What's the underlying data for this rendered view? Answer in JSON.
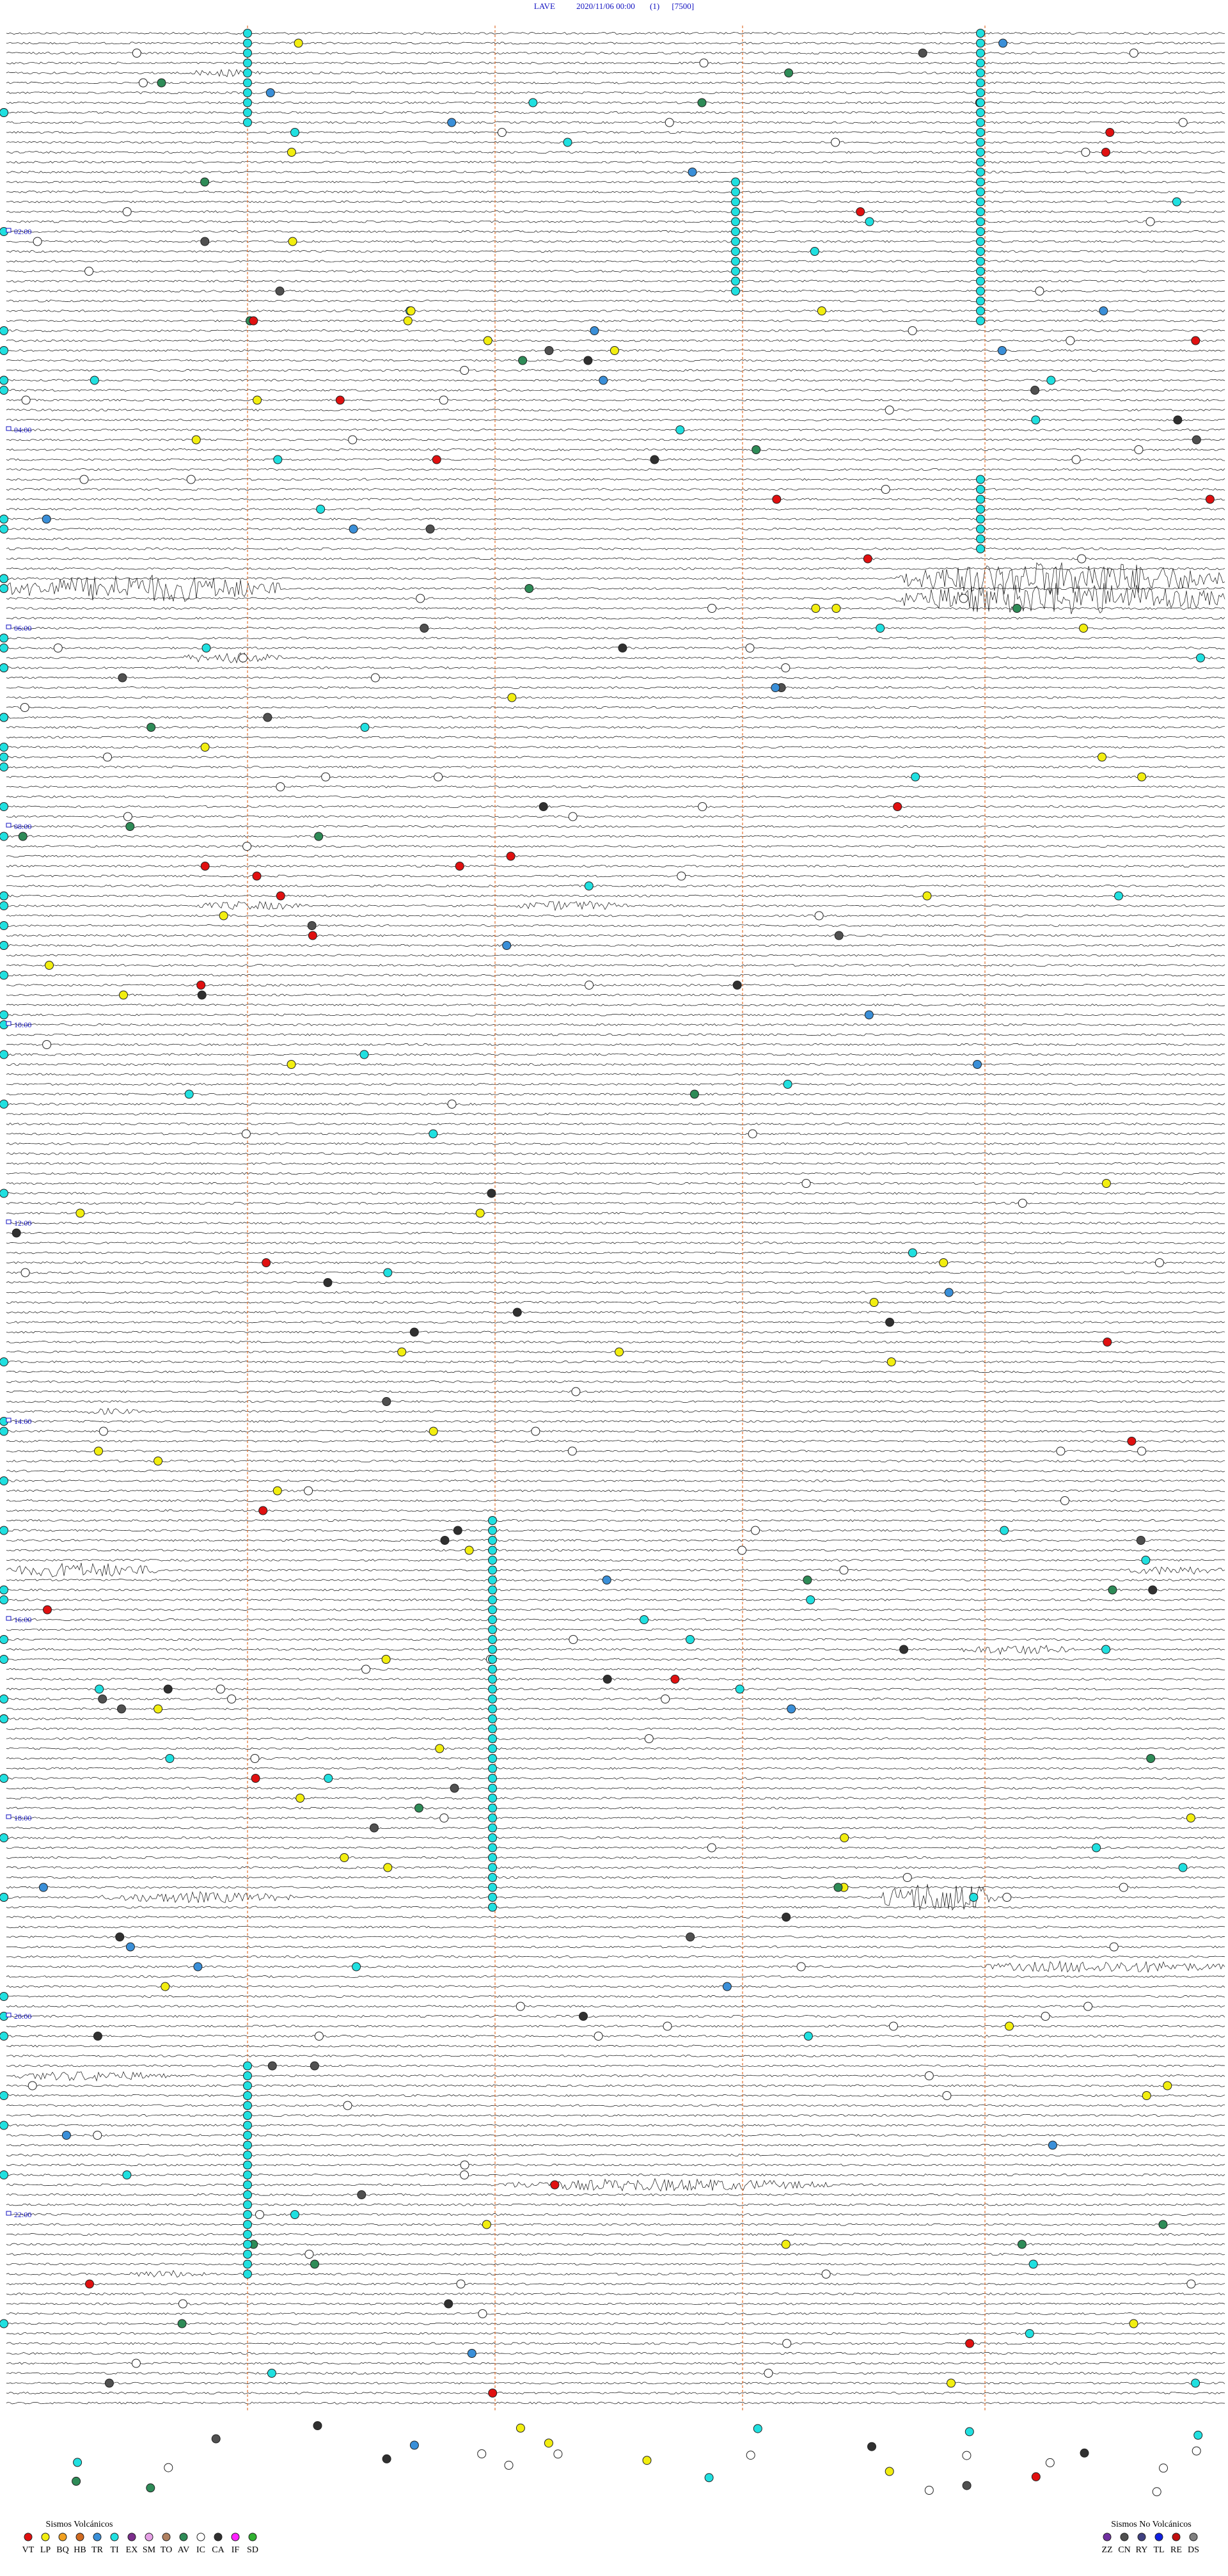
{
  "header": {
    "station": "LAVE",
    "datetime": "2020/11/06 00:00",
    "channel": "(1)",
    "scale": "[7500]"
  },
  "time_labels": [
    "02:00",
    "04:00",
    "06:00",
    "08:00",
    "10:00",
    "12:00",
    "14:00",
    "16:00",
    "18:00",
    "20:00",
    "22:00"
  ],
  "legend": {
    "volcanic": {
      "title": "Sismos Volcánicos",
      "items": [
        {
          "code": "VT",
          "color": "#e01010"
        },
        {
          "code": "LP",
          "color": "#f2ee10"
        },
        {
          "code": "BQ",
          "color": "#f0a020"
        },
        {
          "code": "HB",
          "color": "#d06a20"
        },
        {
          "code": "TR",
          "color": "#3a8fd8"
        },
        {
          "code": "TI",
          "color": "#20e0e0"
        },
        {
          "code": "EX",
          "color": "#7b2d8b"
        },
        {
          "code": "SM",
          "color": "#e6a0e6"
        },
        {
          "code": "TO",
          "color": "#b08060"
        },
        {
          "code": "AV",
          "color": "#2e8b57"
        },
        {
          "code": "IC",
          "color": "#ffffff"
        },
        {
          "code": "CA",
          "color": "#303030"
        },
        {
          "code": "IF",
          "color": "#ff20ff"
        },
        {
          "code": "SD",
          "color": "#30b030"
        }
      ]
    },
    "non_volcanic": {
      "title": "Sismos No Volcánicos",
      "items": [
        {
          "code": "ZZ",
          "color": "#7030a0"
        },
        {
          "code": "CN",
          "color": "#505050"
        },
        {
          "code": "RY",
          "color": "#404080"
        },
        {
          "code": "TL",
          "color": "#1020e0"
        },
        {
          "code": "RE",
          "color": "#c01010"
        },
        {
          "code": "DS",
          "color": "#808080"
        }
      ]
    }
  }
}
